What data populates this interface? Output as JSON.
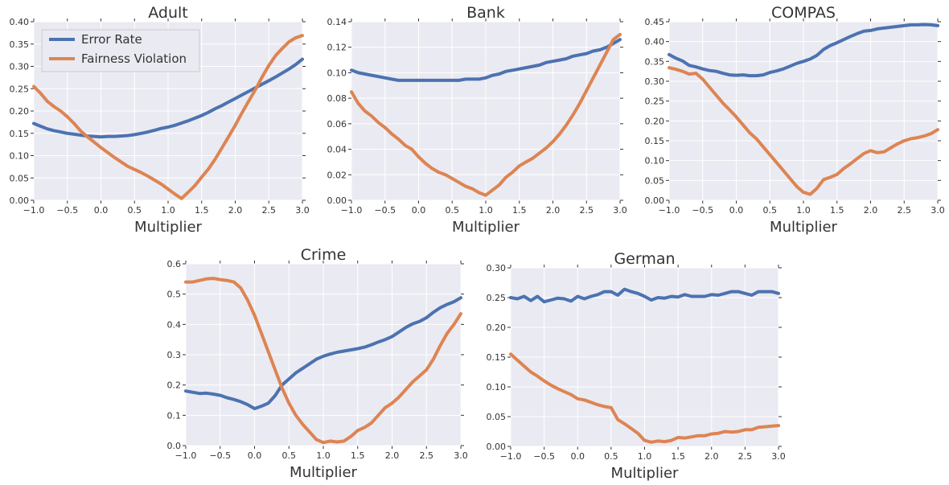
{
  "colors": {
    "error_rate": "#4c72b0",
    "fairness_violation": "#dd8452",
    "plot_background": "#eaeaf2",
    "grid": "#ffffff"
  },
  "legend": {
    "placement": "top-left of first panel",
    "entries": [
      "Error Rate",
      "Fairness Violation"
    ]
  },
  "chart_data": [
    {
      "type": "line",
      "title": "Adult",
      "xlabel": "Multiplier",
      "ylabel": "",
      "xlim": [
        -1.0,
        3.0
      ],
      "ylim": [
        0.0,
        0.4
      ],
      "xticks": [
        "−1.0",
        "−0.5",
        "0.0",
        "0.5",
        "1.0",
        "1.5",
        "2.0",
        "2.5",
        "3.0"
      ],
      "yticks": [
        "0.00",
        "0.05",
        "0.10",
        "0.15",
        "0.20",
        "0.25",
        "0.30",
        "0.35",
        "0.40"
      ],
      "grid": true,
      "x": [
        -1.0,
        -0.9,
        -0.8,
        -0.7,
        -0.6,
        -0.5,
        -0.4,
        -0.3,
        -0.2,
        -0.1,
        0.0,
        0.1,
        0.2,
        0.3,
        0.4,
        0.5,
        0.6,
        0.7,
        0.8,
        0.9,
        1.0,
        1.1,
        1.2,
        1.3,
        1.4,
        1.5,
        1.6,
        1.7,
        1.8,
        1.9,
        2.0,
        2.1,
        2.2,
        2.3,
        2.4,
        2.5,
        2.6,
        2.7,
        2.8,
        2.9,
        3.0
      ],
      "series": [
        {
          "name": "Error Rate",
          "values": [
            0.172,
            0.166,
            0.16,
            0.156,
            0.153,
            0.15,
            0.148,
            0.146,
            0.144,
            0.143,
            0.142,
            0.143,
            0.143,
            0.144,
            0.145,
            0.147,
            0.15,
            0.153,
            0.157,
            0.161,
            0.164,
            0.168,
            0.173,
            0.178,
            0.184,
            0.19,
            0.197,
            0.205,
            0.212,
            0.22,
            0.228,
            0.236,
            0.244,
            0.252,
            0.26,
            0.268,
            0.276,
            0.285,
            0.294,
            0.304,
            0.316
          ]
        },
        {
          "name": "Fairness Violation",
          "values": [
            0.255,
            0.24,
            0.222,
            0.21,
            0.2,
            0.187,
            0.172,
            0.155,
            0.142,
            0.13,
            0.118,
            0.107,
            0.096,
            0.086,
            0.076,
            0.069,
            0.062,
            0.054,
            0.045,
            0.036,
            0.025,
            0.014,
            0.004,
            0.018,
            0.033,
            0.052,
            0.07,
            0.092,
            0.117,
            0.142,
            0.168,
            0.196,
            0.222,
            0.248,
            0.276,
            0.302,
            0.324,
            0.34,
            0.355,
            0.364,
            0.369
          ]
        }
      ]
    },
    {
      "type": "line",
      "title": "Bank",
      "xlabel": "Multiplier",
      "ylabel": "",
      "xlim": [
        -1.0,
        3.0
      ],
      "ylim": [
        0.0,
        0.14
      ],
      "xticks": [
        "−1.0",
        "−0.5",
        "0.0",
        "0.5",
        "1.0",
        "1.5",
        "2.0",
        "2.5",
        "3.0"
      ],
      "yticks": [
        "0.00",
        "0.02",
        "0.04",
        "0.06",
        "0.08",
        "0.10",
        "0.12",
        "0.14"
      ],
      "grid": true,
      "x": [
        -1.0,
        -0.9,
        -0.8,
        -0.7,
        -0.6,
        -0.5,
        -0.4,
        -0.3,
        -0.2,
        -0.1,
        0.0,
        0.1,
        0.2,
        0.3,
        0.4,
        0.5,
        0.6,
        0.7,
        0.8,
        0.9,
        1.0,
        1.1,
        1.2,
        1.3,
        1.4,
        1.5,
        1.6,
        1.7,
        1.8,
        1.9,
        2.0,
        2.1,
        2.2,
        2.3,
        2.4,
        2.5,
        2.6,
        2.7,
        2.8,
        2.9,
        3.0
      ],
      "series": [
        {
          "name": "Error Rate",
          "values": [
            0.102,
            0.1,
            0.099,
            0.098,
            0.097,
            0.096,
            0.095,
            0.094,
            0.094,
            0.094,
            0.094,
            0.094,
            0.094,
            0.094,
            0.094,
            0.094,
            0.094,
            0.095,
            0.095,
            0.095,
            0.096,
            0.098,
            0.099,
            0.101,
            0.102,
            0.103,
            0.104,
            0.105,
            0.106,
            0.108,
            0.109,
            0.11,
            0.111,
            0.113,
            0.114,
            0.115,
            0.117,
            0.118,
            0.12,
            0.123,
            0.126
          ]
        },
        {
          "name": "Fairness Violation",
          "values": [
            0.085,
            0.076,
            0.07,
            0.066,
            0.061,
            0.057,
            0.052,
            0.048,
            0.043,
            0.04,
            0.034,
            0.029,
            0.025,
            0.022,
            0.02,
            0.017,
            0.014,
            0.011,
            0.009,
            0.006,
            0.004,
            0.008,
            0.012,
            0.018,
            0.022,
            0.027,
            0.03,
            0.033,
            0.037,
            0.041,
            0.046,
            0.052,
            0.059,
            0.067,
            0.076,
            0.086,
            0.096,
            0.106,
            0.116,
            0.126,
            0.13
          ]
        }
      ]
    },
    {
      "type": "line",
      "title": "COMPAS",
      "xlabel": "Multiplier",
      "ylabel": "",
      "xlim": [
        -1.0,
        3.0
      ],
      "ylim": [
        0.0,
        0.45
      ],
      "xticks": [
        "−1.0",
        "−0.5",
        "0.0",
        "0.5",
        "1.0",
        "1.5",
        "2.0",
        "2.5",
        "3.0"
      ],
      "yticks": [
        "0.00",
        "0.05",
        "0.10",
        "0.15",
        "0.20",
        "0.25",
        "0.30",
        "0.35",
        "0.40",
        "0.45"
      ],
      "grid": true,
      "x": [
        -1.0,
        -0.9,
        -0.8,
        -0.7,
        -0.6,
        -0.5,
        -0.4,
        -0.3,
        -0.2,
        -0.1,
        0.0,
        0.1,
        0.2,
        0.3,
        0.4,
        0.5,
        0.6,
        0.7,
        0.8,
        0.9,
        1.0,
        1.1,
        1.2,
        1.3,
        1.4,
        1.5,
        1.6,
        1.7,
        1.8,
        1.9,
        2.0,
        2.1,
        2.2,
        2.3,
        2.4,
        2.5,
        2.6,
        2.7,
        2.8,
        2.9,
        3.0
      ],
      "series": [
        {
          "name": "Error Rate",
          "values": [
            0.367,
            0.358,
            0.351,
            0.34,
            0.336,
            0.331,
            0.327,
            0.325,
            0.32,
            0.316,
            0.315,
            0.316,
            0.314,
            0.314,
            0.316,
            0.322,
            0.326,
            0.331,
            0.338,
            0.345,
            0.35,
            0.356,
            0.365,
            0.38,
            0.39,
            0.397,
            0.405,
            0.413,
            0.42,
            0.426,
            0.428,
            0.432,
            0.434,
            0.436,
            0.438,
            0.44,
            0.442,
            0.442,
            0.443,
            0.442,
            0.44
          ]
        },
        {
          "name": "Fairness Violation",
          "values": [
            0.334,
            0.33,
            0.325,
            0.318,
            0.32,
            0.305,
            0.285,
            0.265,
            0.245,
            0.228,
            0.21,
            0.19,
            0.17,
            0.155,
            0.135,
            0.115,
            0.095,
            0.075,
            0.055,
            0.035,
            0.02,
            0.015,
            0.03,
            0.052,
            0.058,
            0.065,
            0.08,
            0.092,
            0.105,
            0.118,
            0.125,
            0.12,
            0.122,
            0.132,
            0.142,
            0.15,
            0.155,
            0.158,
            0.162,
            0.168,
            0.178
          ]
        }
      ]
    },
    {
      "type": "line",
      "title": "Crime",
      "xlabel": "Multiplier",
      "ylabel": "",
      "xlim": [
        -1.0,
        3.0
      ],
      "ylim": [
        0.0,
        0.6
      ],
      "xticks": [
        "−1.0",
        "−0.5",
        "0.0",
        "0.5",
        "1.0",
        "1.5",
        "2.0",
        "2.5",
        "3.0"
      ],
      "yticks": [
        "0.0",
        "0.1",
        "0.2",
        "0.3",
        "0.4",
        "0.5",
        "0.6"
      ],
      "grid": true,
      "x": [
        -1.0,
        -0.9,
        -0.8,
        -0.7,
        -0.6,
        -0.5,
        -0.4,
        -0.3,
        -0.2,
        -0.1,
        0.0,
        0.1,
        0.2,
        0.3,
        0.4,
        0.5,
        0.6,
        0.7,
        0.8,
        0.9,
        1.0,
        1.1,
        1.2,
        1.3,
        1.4,
        1.5,
        1.6,
        1.7,
        1.8,
        1.9,
        2.0,
        2.1,
        2.2,
        2.3,
        2.4,
        2.5,
        2.6,
        2.7,
        2.8,
        2.9,
        3.0
      ],
      "series": [
        {
          "name": "Error Rate",
          "values": [
            0.18,
            0.176,
            0.172,
            0.173,
            0.17,
            0.166,
            0.158,
            0.152,
            0.145,
            0.135,
            0.122,
            0.13,
            0.14,
            0.165,
            0.2,
            0.22,
            0.24,
            0.255,
            0.27,
            0.285,
            0.295,
            0.302,
            0.308,
            0.312,
            0.316,
            0.32,
            0.325,
            0.333,
            0.342,
            0.35,
            0.36,
            0.375,
            0.39,
            0.402,
            0.41,
            0.422,
            0.44,
            0.455,
            0.466,
            0.475,
            0.488
          ]
        },
        {
          "name": "Fairness Violation",
          "values": [
            0.54,
            0.54,
            0.545,
            0.55,
            0.552,
            0.548,
            0.545,
            0.54,
            0.52,
            0.48,
            0.43,
            0.37,
            0.31,
            0.25,
            0.19,
            0.14,
            0.1,
            0.07,
            0.045,
            0.02,
            0.01,
            0.015,
            0.012,
            0.015,
            0.03,
            0.05,
            0.06,
            0.075,
            0.1,
            0.125,
            0.14,
            0.16,
            0.185,
            0.21,
            0.23,
            0.25,
            0.285,
            0.33,
            0.37,
            0.4,
            0.435
          ]
        }
      ]
    },
    {
      "type": "line",
      "title": "German",
      "xlabel": "Multiplier",
      "ylabel": "",
      "xlim": [
        -1.0,
        3.0
      ],
      "ylim": [
        0.0,
        0.3
      ],
      "xticks": [
        "−1.0",
        "−0.5",
        "0.0",
        "0.5",
        "1.0",
        "1.5",
        "2.0",
        "2.5",
        "3.0"
      ],
      "yticks": [
        "0.00",
        "0.05",
        "0.10",
        "0.15",
        "0.20",
        "0.25",
        "0.30"
      ],
      "grid": true,
      "x": [
        -1.0,
        -0.9,
        -0.8,
        -0.7,
        -0.6,
        -0.5,
        -0.4,
        -0.3,
        -0.2,
        -0.1,
        0.0,
        0.1,
        0.2,
        0.3,
        0.4,
        0.5,
        0.6,
        0.7,
        0.8,
        0.9,
        1.0,
        1.1,
        1.2,
        1.3,
        1.4,
        1.5,
        1.6,
        1.7,
        1.8,
        1.9,
        2.0,
        2.1,
        2.2,
        2.3,
        2.4,
        2.5,
        2.6,
        2.7,
        2.8,
        2.9,
        3.0
      ],
      "series": [
        {
          "name": "Error Rate",
          "values": [
            0.25,
            0.248,
            0.252,
            0.245,
            0.252,
            0.243,
            0.246,
            0.249,
            0.248,
            0.244,
            0.252,
            0.248,
            0.252,
            0.255,
            0.26,
            0.26,
            0.254,
            0.264,
            0.26,
            0.257,
            0.252,
            0.246,
            0.25,
            0.249,
            0.252,
            0.251,
            0.255,
            0.252,
            0.252,
            0.252,
            0.255,
            0.254,
            0.257,
            0.26,
            0.26,
            0.257,
            0.254,
            0.26,
            0.26,
            0.26,
            0.257
          ]
        },
        {
          "name": "Fairness Violation",
          "values": [
            0.155,
            0.145,
            0.135,
            0.125,
            0.118,
            0.11,
            0.103,
            0.097,
            0.092,
            0.087,
            0.08,
            0.078,
            0.074,
            0.07,
            0.067,
            0.065,
            0.045,
            0.038,
            0.03,
            0.022,
            0.01,
            0.007,
            0.009,
            0.008,
            0.01,
            0.015,
            0.014,
            0.016,
            0.018,
            0.018,
            0.021,
            0.022,
            0.025,
            0.024,
            0.025,
            0.028,
            0.028,
            0.032,
            0.033,
            0.034,
            0.035
          ]
        }
      ]
    }
  ]
}
